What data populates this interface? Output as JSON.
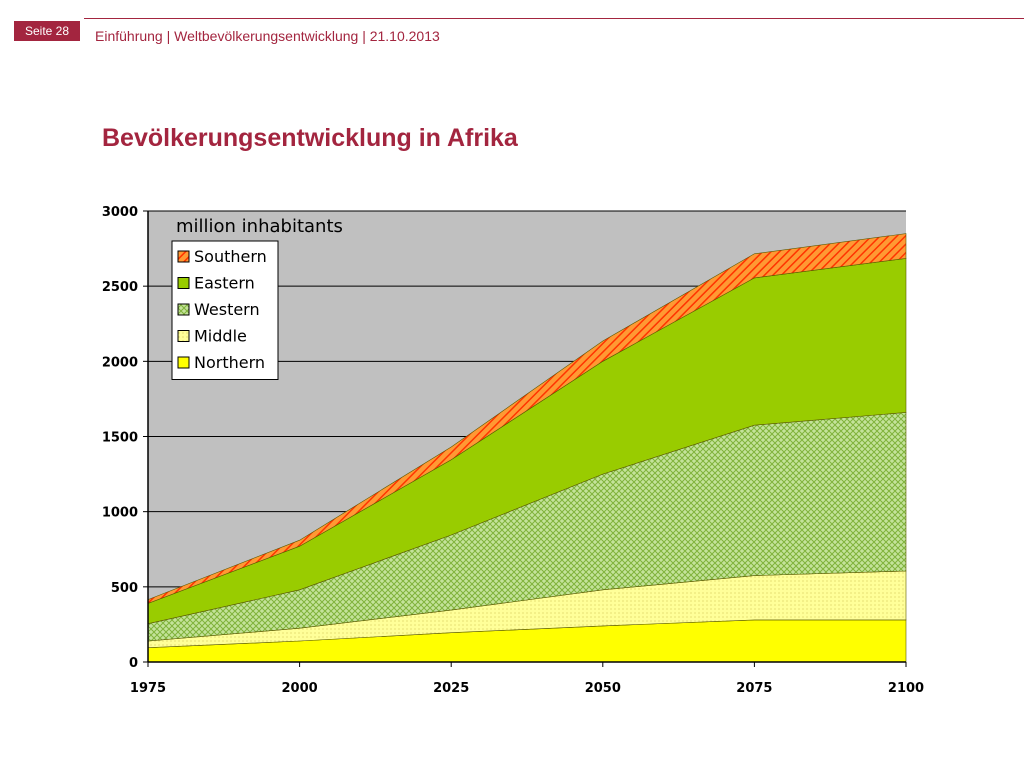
{
  "header": {
    "page_label": "Seite 28",
    "breadcrumb": "Einführung | Weltbevölkerungsentwicklung | 21.10.2013"
  },
  "slide": {
    "title": "Bevölkerungsentwicklung in Afrika"
  },
  "colors": {
    "brand": "#a3253f",
    "plot_background": "#c0c0c0"
  },
  "chart_data": {
    "type": "area",
    "stacked": true,
    "title": "",
    "unit_label": "million inhabitants",
    "xlabel": "",
    "ylabel": "",
    "x": [
      1975,
      2000,
      2025,
      2050,
      2075,
      2100
    ],
    "x_ticks": [
      "1975",
      "2000",
      "2025",
      "2050",
      "2075",
      "2100"
    ],
    "y_ticks": [
      "0",
      "500",
      "1000",
      "1500",
      "2000",
      "2500",
      "3000"
    ],
    "ylim": [
      0,
      3000
    ],
    "grid": true,
    "legend_position": "top-left",
    "series": [
      {
        "name": "Northern",
        "values": [
          95,
          140,
          195,
          240,
          280,
          280
        ],
        "color": "#ffff00",
        "pattern": "solid"
      },
      {
        "name": "Middle",
        "values": [
          45,
          85,
          150,
          240,
          295,
          325
        ],
        "color": "#ffff99",
        "pattern": "dotted"
      },
      {
        "name": "Western",
        "values": [
          115,
          255,
          500,
          770,
          1000,
          1055
        ],
        "color": "#99cc33",
        "pattern": "crosshatch"
      },
      {
        "name": "Eastern",
        "values": [
          135,
          290,
          500,
          750,
          980,
          1025
        ],
        "color": "#99cc00",
        "pattern": "solid"
      },
      {
        "name": "Southern",
        "values": [
          25,
          40,
          85,
          135,
          160,
          165
        ],
        "color": "#ff6600",
        "pattern": "striped"
      }
    ],
    "legend_order": [
      "Southern",
      "Eastern",
      "Western",
      "Middle",
      "Northern"
    ]
  }
}
